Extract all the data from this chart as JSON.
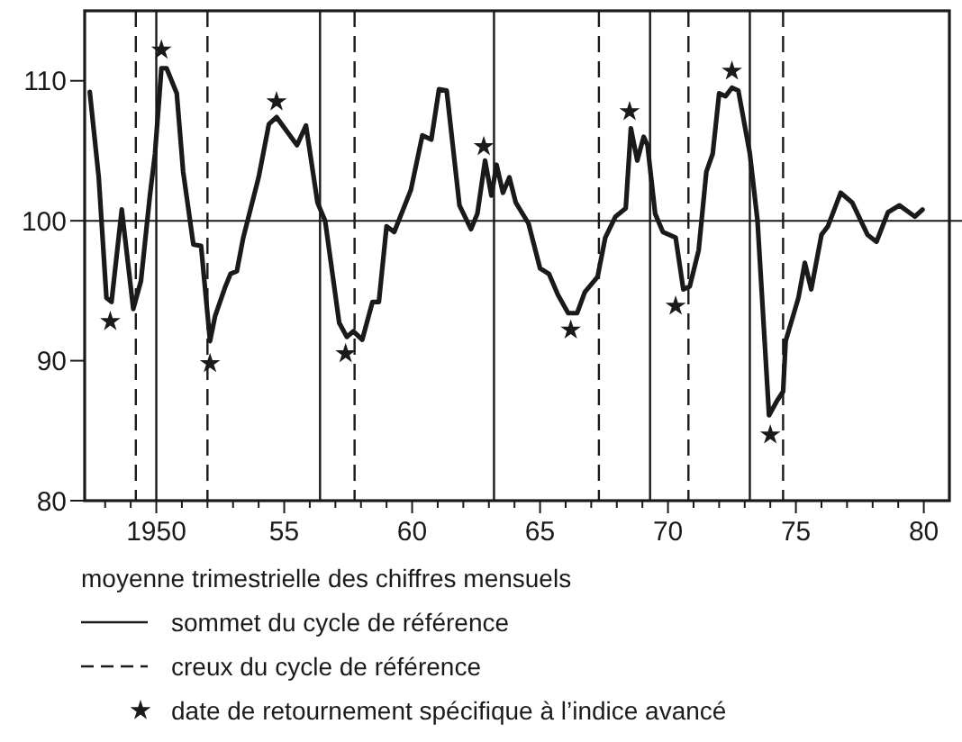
{
  "chart_data": {
    "type": "line",
    "xlim": [
      1947.2,
      1981
    ],
    "ylim": [
      80,
      115
    ],
    "xticks": [
      {
        "value": 1948,
        "label": null
      },
      {
        "value": 1949,
        "label": null
      },
      1950,
      {
        "value": 1951,
        "label": null
      },
      {
        "value": 1952,
        "label": null
      },
      {
        "value": 1953,
        "label": null
      },
      {
        "value": 1954,
        "label": null
      },
      {
        "value": 1955,
        "label": "55"
      },
      {
        "value": 1956,
        "label": null
      },
      {
        "value": 1957,
        "label": null
      },
      {
        "value": 1958,
        "label": null
      },
      {
        "value": 1959,
        "label": null
      },
      {
        "value": 1960,
        "label": "60"
      },
      {
        "value": 1961,
        "label": null
      },
      {
        "value": 1962,
        "label": null
      },
      {
        "value": 1963,
        "label": null
      },
      {
        "value": 1964,
        "label": null
      },
      {
        "value": 1965,
        "label": "65"
      },
      {
        "value": 1966,
        "label": null
      },
      {
        "value": 1967,
        "label": null
      },
      {
        "value": 1968,
        "label": null
      },
      {
        "value": 1969,
        "label": null
      },
      {
        "value": 1970,
        "label": "70"
      },
      {
        "value": 1971,
        "label": null
      },
      {
        "value": 1972,
        "label": null
      },
      {
        "value": 1973,
        "label": null
      },
      {
        "value": 1974,
        "label": null
      },
      {
        "value": 1975,
        "label": "75"
      },
      {
        "value": 1976,
        "label": null
      },
      {
        "value": 1977,
        "label": null
      },
      {
        "value": 1978,
        "label": null
      },
      {
        "value": 1979,
        "label": null
      },
      {
        "value": 1980,
        "label": "80"
      }
    ],
    "yticks": [
      80,
      90,
      100,
      110
    ],
    "grid": false,
    "legend": "bottom",
    "annotations": [
      "moyenne trimestrielle des chiffres mensuels"
    ],
    "series": [
      {
        "color": "#1a1a1a",
        "marker": "none",
        "line_style": "solid",
        "x": [
          1947.4,
          1947.75,
          1948.05,
          1948.25,
          1948.65,
          1949.1,
          1949.4,
          1949.75,
          1949.95,
          1950.2,
          1950.4,
          1950.8,
          1951.05,
          1951.45,
          1951.75,
          1952.1,
          1952.3,
          1952.7,
          1952.9,
          1953.15,
          1953.4,
          1954,
          1954.4,
          1954.7,
          1955.5,
          1955.85,
          1956.3,
          1956.6,
          1957.15,
          1957.45,
          1957.7,
          1958.05,
          1958.45,
          1958.7,
          1959,
          1959.3,
          1959.95,
          1960.4,
          1960.75,
          1961.05,
          1961.35,
          1961.85,
          1962.3,
          1962.55,
          1962.85,
          1963.1,
          1963.3,
          1963.55,
          1963.8,
          1964.05,
          1964.55,
          1965,
          1965.35,
          1965.7,
          1966.1,
          1966.45,
          1966.75,
          1967.25,
          1967.55,
          1967.95,
          1968.35,
          1968.55,
          1968.8,
          1969.05,
          1969.2,
          1969.5,
          1969.8,
          1970.3,
          1970.6,
          1970.85,
          1971.2,
          1971.5,
          1971.75,
          1972,
          1972.25,
          1972.5,
          1972.75,
          1973.2,
          1973.5,
          1973.95,
          1974.25,
          1974.5,
          1974.6,
          1975.1,
          1975.35,
          1975.6,
          1976,
          1976.25,
          1976.75,
          1977.2,
          1977.8,
          1978.15,
          1978.6,
          1979.05,
          1979.65,
          1979.95
        ],
        "values": [
          109.2,
          103.1,
          94.5,
          94.2,
          100.8,
          93.7,
          95.7,
          101.8,
          104.8,
          110.9,
          110.9,
          109.1,
          103.5,
          98.3,
          98.2,
          91.4,
          93.2,
          95.3,
          96.2,
          96.4,
          98.8,
          103.1,
          106.9,
          107.4,
          105.4,
          106.8,
          101.3,
          100,
          92.7,
          91.7,
          92.1,
          91.5,
          94.2,
          94.2,
          99.6,
          99.2,
          102.2,
          106.1,
          105.8,
          109.4,
          109.3,
          101.1,
          99.4,
          100.5,
          104.3,
          101.8,
          104,
          102,
          103.1,
          101.3,
          99.8,
          96.6,
          96.2,
          94.7,
          93.4,
          93.4,
          94.9,
          96,
          98.8,
          100.3,
          100.9,
          106.6,
          104.3,
          106,
          105.4,
          100.5,
          99.2,
          98.8,
          95.1,
          95.3,
          97.9,
          103.5,
          104.8,
          109.1,
          108.9,
          109.5,
          109.3,
          104.8,
          100,
          86.1,
          87.1,
          87.8,
          91.4,
          94.5,
          97,
          95.1,
          99,
          99.6,
          102,
          101.3,
          99,
          98.5,
          100.6,
          101.1,
          100.3,
          100.8
        ]
      },
      {
        "type": "scatter",
        "name": "date de retournement spécifique à l’indice avancé",
        "color": "#1a1a1a",
        "marker": "star",
        "x": [
          1948.2,
          1950.2,
          1952.1,
          1954.7,
          1957.4,
          1962.8,
          1966.2,
          1968.5,
          1970.3,
          1972.5,
          1974
        ],
        "values": [
          92.8,
          112.2,
          89.8,
          108.5,
          90.5,
          105.3,
          92.2,
          107.8,
          93.9,
          110.7,
          84.7
        ]
      }
    ],
    "ref_lines": [
      {
        "axis": "y",
        "value": 100,
        "color": "#1a1a1a",
        "line_style": "solid"
      },
      {
        "axis": "x",
        "value": 1950,
        "color": "#1a1a1a",
        "line_style": "solid",
        "label": "sommet du cycle de référence"
      },
      {
        "axis": "x",
        "value": 1956.4,
        "color": "#1a1a1a",
        "line_style": "solid"
      },
      {
        "axis": "x",
        "value": 1963.2,
        "color": "#1a1a1a",
        "line_style": "solid"
      },
      {
        "axis": "x",
        "value": 1969.3,
        "color": "#1a1a1a",
        "line_style": "solid"
      },
      {
        "axis": "x",
        "value": 1973.2,
        "color": "#1a1a1a",
        "line_style": "solid"
      },
      {
        "axis": "x",
        "value": 1949.2,
        "color": "#1a1a1a",
        "line_style": "dashed",
        "label": "creux du cycle de référence"
      },
      {
        "axis": "x",
        "value": 1952,
        "color": "#1a1a1a",
        "line_style": "dashed"
      },
      {
        "axis": "x",
        "value": 1957.75,
        "color": "#1a1a1a",
        "line_style": "dashed"
      },
      {
        "axis": "x",
        "value": 1967.3,
        "color": "#1a1a1a",
        "line_style": "dashed"
      },
      {
        "axis": "x",
        "value": 1970.8,
        "color": "#1a1a1a",
        "line_style": "dashed"
      },
      {
        "axis": "x",
        "value": 1974.5,
        "color": "#1a1a1a",
        "line_style": "dashed"
      }
    ]
  }
}
